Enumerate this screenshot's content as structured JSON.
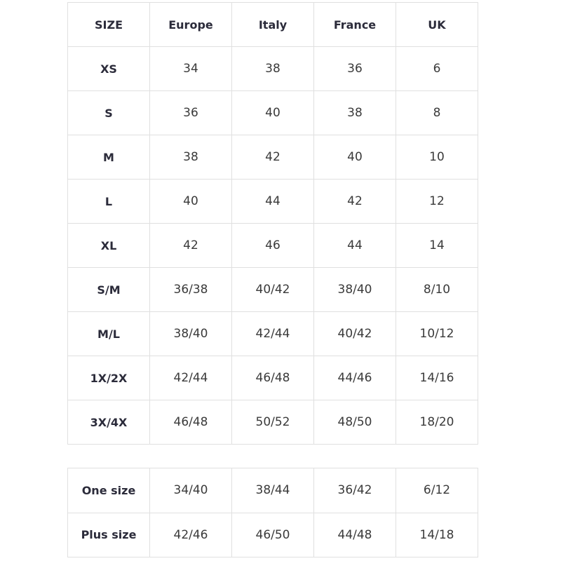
{
  "size_chart": {
    "headers": [
      "SIZE",
      "Europe",
      "Italy",
      "France",
      "UK"
    ],
    "rows": [
      [
        "XS",
        "34",
        "38",
        "36",
        "6"
      ],
      [
        "S",
        "36",
        "40",
        "38",
        "8"
      ],
      [
        "M",
        "38",
        "42",
        "40",
        "10"
      ],
      [
        "L",
        "40",
        "44",
        "42",
        "12"
      ],
      [
        "XL",
        "42",
        "46",
        "44",
        "14"
      ],
      [
        "S/M",
        "36/38",
        "40/42",
        "38/40",
        "8/10"
      ],
      [
        "M/L",
        "38/40",
        "42/44",
        "40/42",
        "10/12"
      ],
      [
        "1X/2X",
        "42/44",
        "46/48",
        "44/46",
        "14/16"
      ],
      [
        "3X/4X",
        "46/48",
        "50/52",
        "48/50",
        "18/20"
      ]
    ]
  },
  "extra_sizes": {
    "rows": [
      [
        "One size",
        "34/40",
        "38/44",
        "36/42",
        "6/12"
      ],
      [
        "Plus size",
        "42/46",
        "46/50",
        "44/48",
        "14/18"
      ]
    ]
  }
}
